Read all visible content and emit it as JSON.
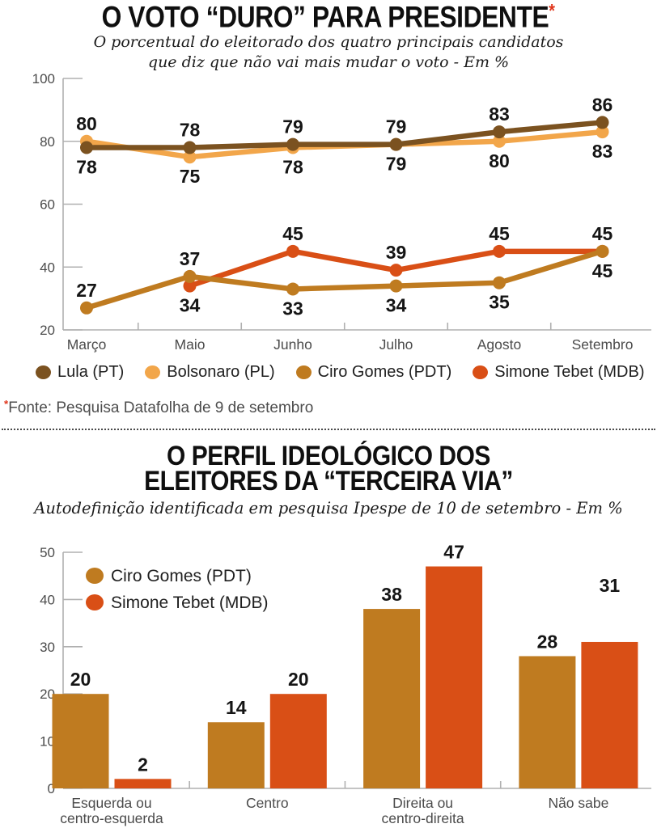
{
  "chart1": {
    "title": "O VOTO “DURO” PARA PRESIDENTE",
    "asterisk": "*",
    "subtitle_line1": "O porcentual do eleitorado dos quatro principais candidatos",
    "subtitle_line2": "que diz que não vai mais mudar o voto - Em %",
    "footnote_mark": "*",
    "footnote_text": "Fonte: Pesquisa Datafolha de 9 de setembro"
  },
  "chart2": {
    "title_line1": "O PERFIL IDEOLÓGICO DOS",
    "title_line2": "ELEITORES DA “TERCEIRA VIA”",
    "subtitle": "Autodefinição identificada em pesquisa Ipespe de 10 de setembro - Em %"
  },
  "colors": {
    "lula": "#7B5220",
    "bolsonaro": "#F2A64A",
    "ciro": "#BF7B20",
    "simone": "#D94F16",
    "accent_red": "#E0351B",
    "axis": "#B0B0B0",
    "tick_label": "#4B4B4B",
    "value_label": "#151515"
  },
  "chart_data": [
    {
      "type": "line",
      "title": "O VOTO “DURO” PARA PRESIDENTE",
      "subtitle": "O porcentual do eleitorado dos quatro principais candidatos que diz que não vai mais mudar o voto - Em %",
      "categories": [
        "Março",
        "Maio",
        "Junho",
        "Julho",
        "Agosto",
        "Setembro"
      ],
      "series": [
        {
          "name": "Lula (PT)",
          "color": "#7B5220",
          "values": [
            78,
            78,
            79,
            79,
            83,
            86
          ],
          "label_pos": [
            "below",
            "above",
            "above",
            "above",
            "above",
            "above"
          ]
        },
        {
          "name": "Bolsonaro (PL)",
          "color": "#F2A64A",
          "values": [
            80,
            75,
            78,
            79,
            80,
            83
          ],
          "label_pos": [
            "above",
            "below",
            "below",
            "below",
            "below",
            "below"
          ]
        },
        {
          "name": "Ciro Gomes (PDT)",
          "color": "#BF7B20",
          "values": [
            27,
            37,
            33,
            34,
            35,
            45
          ],
          "label_pos": [
            "above",
            "above",
            "below",
            "below",
            "below",
            "below"
          ]
        },
        {
          "name": "Simone Tebet (MDB)",
          "color": "#D94F16",
          "values": [
            null,
            34,
            45,
            39,
            45,
            45
          ],
          "label_pos": [
            null,
            "below",
            "above",
            "above",
            "above",
            "above"
          ]
        }
      ],
      "ylim": [
        20,
        100
      ],
      "yticks": [
        20,
        40,
        60,
        80,
        100
      ],
      "legend_position": "bottom",
      "grid": false
    },
    {
      "type": "bar",
      "title": "O PERFIL IDEOLÓGICO DOS ELEITORES DA “TERCEIRA VIA”",
      "subtitle": "Autodefinição identificada em pesquisa Ipespe de 10 de setembro - Em %",
      "categories": [
        "Esquerda ou centro-esquerda",
        "Centro",
        "Direita ou centro-direita",
        "Não sabe"
      ],
      "category_lines": [
        [
          "Esquerda ou",
          "centro-esquerda"
        ],
        [
          "Centro"
        ],
        [
          "Direita ou",
          "centro-direita"
        ],
        [
          "Não sabe"
        ]
      ],
      "series": [
        {
          "name": "Ciro Gomes (PDT)",
          "color": "#BF7B20",
          "values": [
            20,
            14,
            38,
            28
          ]
        },
        {
          "name": "Simone Tebet (MDB)",
          "color": "#D94F16",
          "values": [
            2,
            20,
            47,
            31
          ]
        }
      ],
      "ylim": [
        0,
        50
      ],
      "yticks": [
        0,
        10,
        20,
        30,
        40,
        50
      ],
      "legend_position": "top-left-inside",
      "grid": false
    }
  ]
}
